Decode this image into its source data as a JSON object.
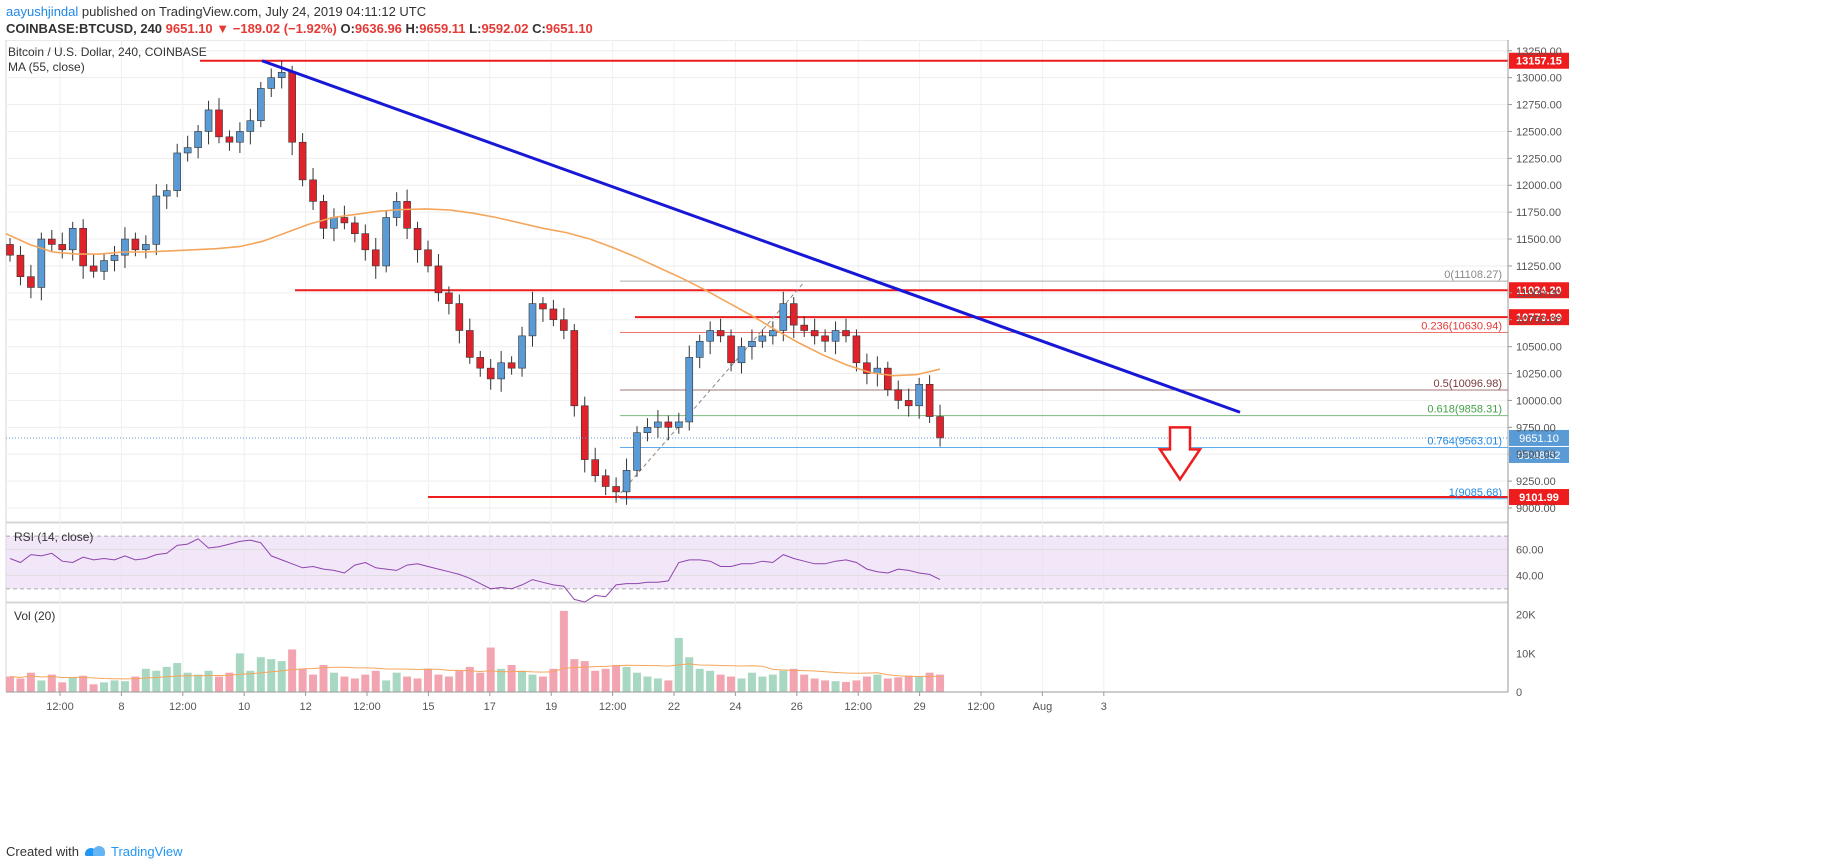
{
  "header": {
    "author": "aayushjindal",
    "published_text": " published on TradingView.com, July 24, 2019 04:11:12 UTC",
    "symbol": "COINBASE:BTCUSD, 240",
    "last": "9651.10",
    "change": "▼ −189.02 (−1.92%)",
    "o_label": "O:",
    "o_value": "9636.96",
    "h_label": "H:",
    "h_value": "9659.11",
    "l_label": "L:",
    "l_value": "9592.02",
    "c_label": "C:",
    "c_value": "9651.10"
  },
  "footer": {
    "created_with": "Created with",
    "brand": "TradingView"
  },
  "colors": {
    "up": "#5b9bd5",
    "down": "#e0232b",
    "ma": "#f5a55b",
    "trend": "#1717d6",
    "level": "#ee1c1c",
    "rsi": "#8e44ad"
  },
  "chart_data": {
    "type": "candlestick",
    "title": "Bitcoin / U.S. Dollar, 240, COINBASE",
    "indicator_label": "MA (55, close)",
    "price_axis": {
      "range": [
        8870,
        13350
      ],
      "ticks": [
        "9000.00",
        "9250.00",
        "9500.00",
        "9750.00",
        "10000.00",
        "10250.00",
        "10500.00",
        "10750.00",
        "11000.00",
        "11250.00",
        "11500.00",
        "11750.00",
        "12000.00",
        "12250.00",
        "12500.00",
        "12750.00",
        "13000.00",
        "13250.00"
      ]
    },
    "time_axis": [
      "12:00",
      "8",
      "12:00",
      "10",
      "12",
      "12:00",
      "15",
      "17",
      "19",
      "12:00",
      "22",
      "24",
      "26",
      "12:00",
      "29",
      "12:00",
      "Aug",
      "3"
    ],
    "close_path": [
      11350,
      11150,
      11050,
      11500,
      11450,
      11400,
      11600,
      11250,
      11200,
      11300,
      11350,
      11500,
      11400,
      11450,
      11900,
      11950,
      12300,
      12350,
      12500,
      12700,
      12450,
      12400,
      12500,
      12600,
      12900,
      13000,
      13050,
      12400,
      12050,
      11850,
      11600,
      11700,
      11650,
      11550,
      11400,
      11250,
      11700,
      11850,
      11600,
      11400,
      11250,
      11000,
      10900,
      10650,
      10400,
      10300,
      10200,
      10350,
      10300,
      10600,
      10900,
      10850,
      10750,
      10650,
      9950,
      9450,
      9300,
      9200,
      9150,
      9350,
      9700,
      9750,
      9800,
      9750,
      9800,
      10400,
      10550,
      10650,
      10600,
      10350,
      10500,
      10550,
      10600,
      10650,
      10900,
      10700,
      10650,
      10600,
      10550,
      10650,
      10600,
      10350,
      10250,
      10300,
      10100,
      10000,
      9950,
      10150,
      9850,
      9651
    ],
    "ma_55": [
      11550,
      11450,
      11380,
      11360,
      11360,
      11380,
      11380,
      11390,
      11400,
      11410,
      11430,
      11480,
      11560,
      11640,
      11700,
      11730,
      11760,
      11775,
      11780,
      11770,
      11740,
      11700,
      11650,
      11600,
      11560,
      11500,
      11420,
      11330,
      11230,
      11130,
      11020,
      10900,
      10780,
      10650,
      10530,
      10420,
      10330,
      10260,
      10230,
      10240,
      10290
    ],
    "rsi": {
      "label": "RSI (14, close)",
      "ticks": [
        "60.00",
        "40.00"
      ],
      "upper": 70,
      "lower": 30,
      "values": [
        53,
        50,
        56,
        55,
        57,
        51,
        50,
        54,
        52,
        53,
        52,
        55,
        52,
        53,
        56,
        57,
        63,
        64,
        68,
        61,
        62,
        64,
        66,
        67,
        65,
        55,
        52,
        49,
        46,
        47,
        45,
        44,
        42,
        48,
        50,
        46,
        45,
        44,
        48,
        49,
        47,
        45,
        43,
        41,
        38,
        34,
        30,
        31,
        30,
        33,
        37,
        35,
        33,
        32,
        22,
        20,
        25,
        24,
        33,
        34,
        34,
        35,
        35,
        36,
        50,
        52,
        52,
        51,
        47,
        47,
        49,
        49,
        51,
        50,
        56,
        53,
        51,
        49,
        49,
        51,
        52,
        50,
        45,
        43,
        42,
        45,
        44,
        42,
        41,
        37
      ]
    },
    "volume": {
      "label": "Vol (20)",
      "ticks": [
        "20K",
        "10K",
        "0"
      ],
      "max": 22000,
      "values": [
        4000,
        3500,
        5000,
        3000,
        4500,
        2500,
        3800,
        4200,
        2000,
        2500,
        3000,
        2800,
        4000,
        6000,
        5500,
        6500,
        7500,
        5000,
        4500,
        5500,
        4000,
        5000,
        10000,
        5500,
        9000,
        8500,
        8000,
        11000,
        6000,
        4500,
        7000,
        5000,
        4000,
        3500,
        4500,
        5500,
        3000,
        5000,
        4000,
        3500,
        6000,
        4500,
        4000,
        5500,
        6500,
        5000,
        11500,
        6000,
        7000,
        5500,
        4500,
        4000,
        6000,
        21000,
        8500,
        8000,
        5500,
        6000,
        7000,
        6500,
        5000,
        4000,
        3500,
        3000,
        14000,
        9000,
        6000,
        5500,
        4500,
        4000,
        3500,
        5000,
        4000,
        4500,
        5500,
        6000,
        4500,
        3500,
        3000,
        2800,
        2600,
        3000,
        4000,
        4500,
        3500,
        3800,
        4200,
        4000,
        5000,
        4500
      ]
    }
  },
  "annotations": {
    "levels": [
      {
        "value": "13157.15",
        "price": 13157.15
      },
      {
        "value": "11024.20",
        "price": 11024.2
      },
      {
        "value": "10773.89",
        "price": 10773.89
      },
      {
        "value": "9101.99",
        "price": 9101.99
      }
    ],
    "fib": [
      {
        "label": "0(11108.27)",
        "price": 11108.27,
        "color": "#888888"
      },
      {
        "label": "0.236(10630.94)",
        "price": 10630.94,
        "color": "#e53935"
      },
      {
        "label": "0.5(10096.98)",
        "price": 10096.98,
        "color": "#7a3b3b"
      },
      {
        "label": "0.618(9858.31)",
        "price": 9858.31,
        "color": "#43a047"
      },
      {
        "label": "0.764(9563.01)",
        "price": 9563.01,
        "color": "#1e88e5"
      },
      {
        "label": "1(9085.68)",
        "price": 9085.68,
        "color": "#1e88e5"
      }
    ],
    "last_price_label": "9651.10",
    "countdown_label": "03:48:52"
  }
}
